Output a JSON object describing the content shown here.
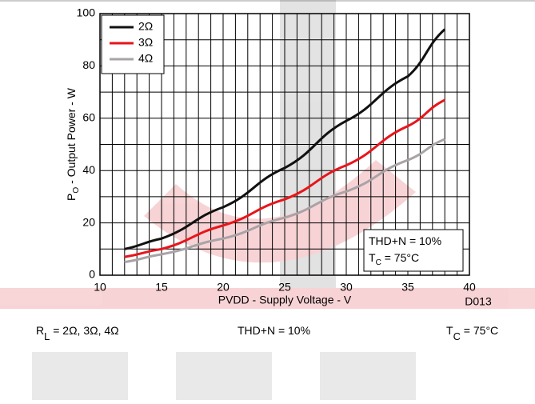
{
  "chart_data": {
    "type": "line",
    "y_label": {
      "main": "P",
      "sub": "O",
      "rest": " - Output Power - W"
    },
    "x_label": "PVDD - Supply Voltage - V",
    "x": [
      12,
      15,
      20,
      25,
      30,
      35,
      38
    ],
    "series": [
      {
        "name": "2Ω",
        "color": "#111111",
        "values": [
          10,
          14,
          26,
          41,
          59,
          76,
          94
        ]
      },
      {
        "name": "3Ω",
        "color": "#e8151b",
        "values": [
          7,
          10,
          19,
          29,
          42,
          57,
          67
        ]
      },
      {
        "name": "4Ω",
        "color": "#a9a3a7",
        "values": [
          5,
          8,
          14,
          22,
          32,
          44,
          52
        ]
      }
    ],
    "xlim": [
      10,
      40
    ],
    "xticks": [
      10,
      15,
      20,
      25,
      30,
      35,
      40
    ],
    "ylim": [
      0,
      100
    ],
    "yticks": [
      0,
      20,
      40,
      60,
      80,
      100
    ],
    "x_minor_grid": [
      11,
      12,
      13,
      14,
      16,
      17,
      18,
      19,
      21,
      22,
      23,
      24,
      26,
      27,
      28,
      29,
      31,
      32,
      33,
      34,
      36,
      37,
      38,
      39
    ],
    "y_minor_grid": [
      10,
      30,
      50,
      70,
      90
    ],
    "grid": true,
    "legend": "top-left",
    "box": [
      {
        "main": "THD+N = 10%"
      },
      {
        "main": "T",
        "sub": "C",
        "rest": " = 75°C"
      }
    ],
    "figure_id": "D013",
    "footer": [
      {
        "main": "R",
        "sub": "L",
        "rest": " = 2Ω, 3Ω, 4Ω"
      },
      {
        "main": "THD+N = 10%"
      },
      {
        "main": "T",
        "sub": "C",
        "rest": " = 75°C"
      }
    ]
  }
}
